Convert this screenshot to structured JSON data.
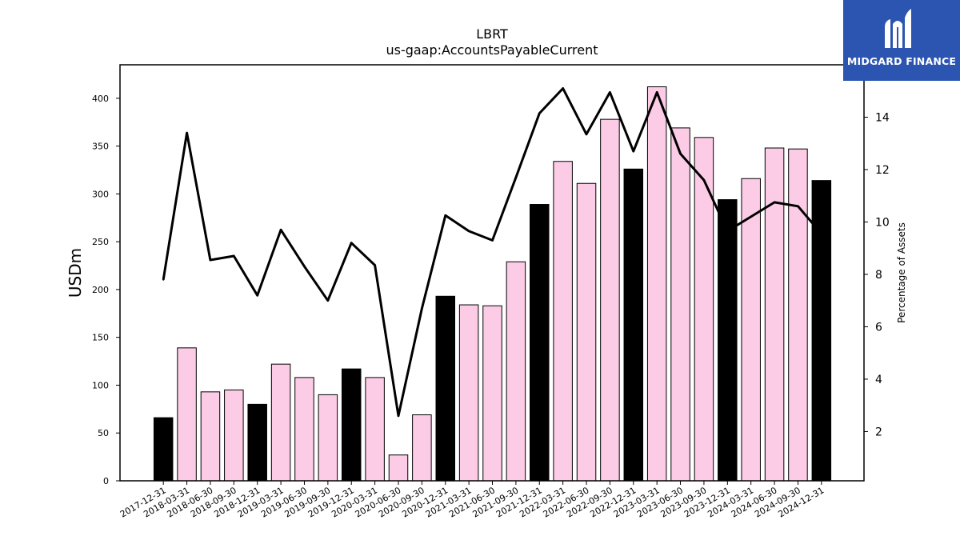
{
  "chart_data": {
    "type": "bar",
    "title": "LBRT",
    "subtitle": "us-gaap:AccountsPayableCurrent",
    "ylabel": "USDm",
    "y2label": "Percentage of Assets",
    "ylim": [
      0,
      435
    ],
    "y2lim": [
      0.12,
      16.0
    ],
    "yticks": [
      0,
      50,
      100,
      150,
      200,
      250,
      300,
      350,
      400
    ],
    "y2ticks": [
      2,
      4,
      6,
      8,
      10,
      12,
      14
    ],
    "categories": [
      "2017-12-31",
      "2018-03-31",
      "2018-06-30",
      "2018-09-30",
      "2018-12-31",
      "2019-03-31",
      "2019-06-30",
      "2019-09-30",
      "2019-12-31",
      "2020-03-31",
      "2020-06-30",
      "2020-09-30",
      "2020-12-31",
      "2021-03-31",
      "2021-06-30",
      "2021-09-30",
      "2021-12-31",
      "2022-03-31",
      "2022-06-30",
      "2022-09-30",
      "2022-12-31",
      "2023-03-31",
      "2023-06-30",
      "2023-09-30",
      "2023-12-31",
      "2024-03-31",
      "2024-06-30",
      "2024-09-30",
      "2024-12-31"
    ],
    "series": [
      {
        "type": "bar",
        "values": [
          66,
          139,
          93,
          95,
          80,
          122,
          108,
          90,
          117,
          108,
          27,
          69,
          193,
          184,
          183,
          229,
          289,
          334,
          311,
          378,
          326,
          412,
          369,
          359,
          294,
          316,
          348,
          347,
          314
        ]
      },
      {
        "type": "line",
        "axis": "y2",
        "values": [
          7.8,
          13.4,
          8.55,
          8.7,
          7.2,
          9.7,
          8.3,
          7.0,
          9.2,
          8.35,
          2.6,
          6.7,
          10.25,
          9.65,
          9.3,
          11.7,
          14.15,
          15.1,
          13.35,
          14.95,
          12.7,
          14.95,
          12.6,
          11.6,
          9.65,
          10.2,
          10.75,
          10.6,
          9.55
        ]
      }
    ],
    "bar_colors": {
      "year_end": "#000000",
      "quarter": "#fccce6"
    },
    "line_color": "#000000",
    "grid": false,
    "legend": "none"
  },
  "logo": {
    "text": "MIDGARD FINANCE",
    "color": "#2b55b0"
  }
}
